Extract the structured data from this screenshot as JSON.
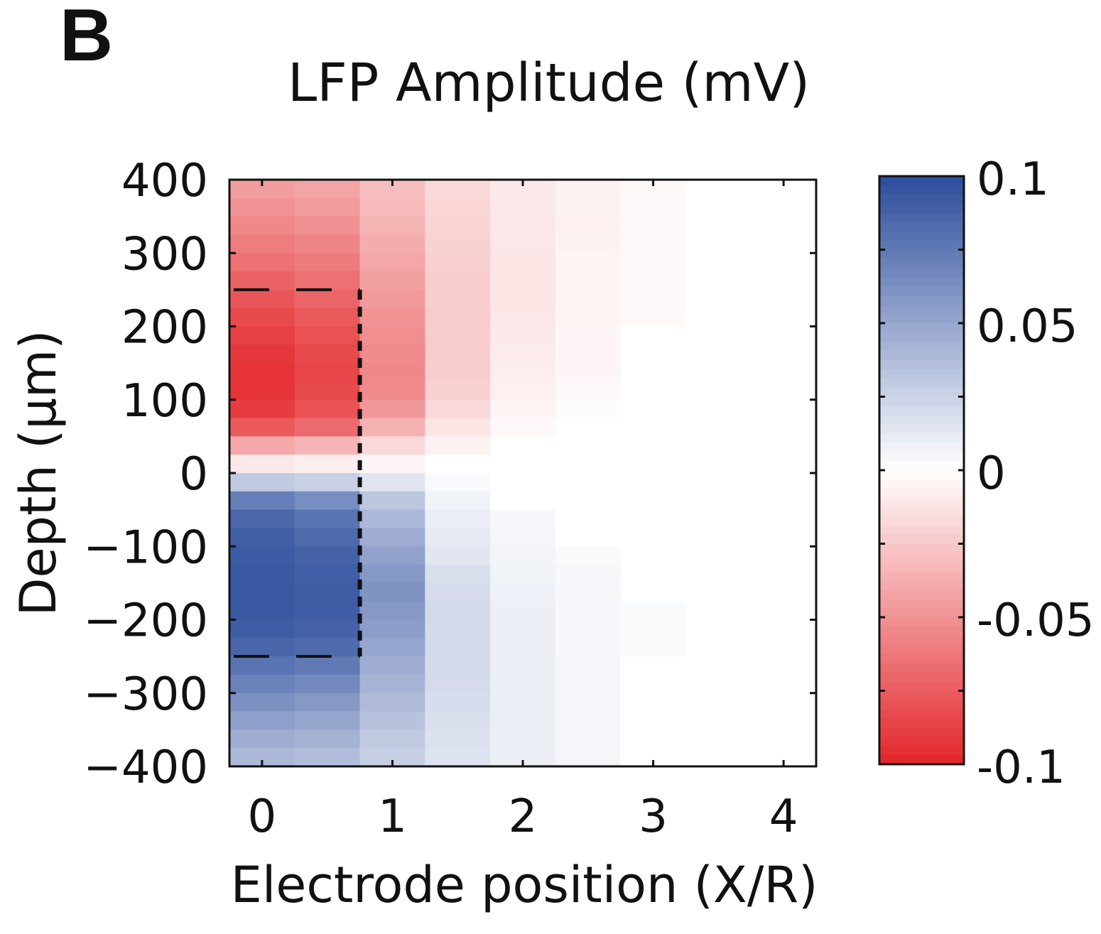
{
  "panel_label": "B",
  "chart_data": {
    "type": "heatmap",
    "title": "LFP Amplitude (mV)",
    "xlabel": "Electrode position (X/R)",
    "ylabel": "Depth (μm)",
    "xlim": [
      -0.25,
      4.25
    ],
    "ylim": [
      -400,
      400
    ],
    "xticks": [
      0,
      1,
      2,
      3,
      4
    ],
    "xtick_labels": [
      "0",
      "1",
      "2",
      "3",
      "4"
    ],
    "yticks": [
      400,
      300,
      200,
      100,
      0,
      -100,
      -200,
      -300,
      -400
    ],
    "ytick_labels": [
      "400",
      "300",
      "200",
      "100",
      "0",
      "−100",
      "−200",
      "−300",
      "−400"
    ],
    "x_columns": [
      0,
      0.5,
      1,
      1.5,
      2,
      2.5,
      3,
      3.5,
      4
    ],
    "y_row_centers": [
      387.5,
      362.5,
      337.5,
      312.5,
      287.5,
      262.5,
      237.5,
      212.5,
      187.5,
      162.5,
      137.5,
      112.5,
      87.5,
      62.5,
      37.5,
      12.5,
      -12.5,
      -37.5,
      -62.5,
      -87.5,
      -112.5,
      -137.5,
      -162.5,
      -187.5,
      -212.5,
      -237.5,
      -262.5,
      -287.5,
      -312.5,
      -337.5,
      -362.5,
      -387.5
    ],
    "values": [
      [
        -0.045,
        -0.042,
        -0.03,
        -0.018,
        -0.01,
        -0.006,
        -0.003,
        0,
        0
      ],
      [
        -0.05,
        -0.046,
        -0.032,
        -0.019,
        -0.01,
        -0.006,
        -0.003,
        0,
        0
      ],
      [
        -0.055,
        -0.051,
        -0.035,
        -0.02,
        -0.011,
        -0.007,
        -0.003,
        0,
        0
      ],
      [
        -0.06,
        -0.056,
        -0.038,
        -0.021,
        -0.011,
        -0.006,
        -0.003,
        0,
        0
      ],
      [
        -0.066,
        -0.061,
        -0.041,
        -0.022,
        -0.012,
        -0.005,
        -0.003,
        0,
        0
      ],
      [
        -0.072,
        -0.066,
        -0.044,
        -0.023,
        -0.012,
        -0.005,
        -0.003,
        0,
        0
      ],
      [
        -0.078,
        -0.071,
        -0.047,
        -0.023,
        -0.012,
        -0.005,
        -0.003,
        0,
        0
      ],
      [
        -0.083,
        -0.076,
        -0.05,
        -0.024,
        -0.011,
        -0.005,
        -0.003,
        0,
        0
      ],
      [
        -0.088,
        -0.08,
        -0.052,
        -0.024,
        -0.01,
        -0.004,
        0,
        0,
        0
      ],
      [
        -0.092,
        -0.083,
        -0.054,
        -0.024,
        -0.009,
        -0.004,
        0,
        0,
        0
      ],
      [
        -0.094,
        -0.085,
        -0.055,
        -0.023,
        -0.008,
        -0.004,
        0,
        0,
        0
      ],
      [
        -0.094,
        -0.084,
        -0.054,
        -0.021,
        -0.007,
        -0.003,
        0,
        0,
        0
      ],
      [
        -0.09,
        -0.08,
        -0.048,
        -0.018,
        -0.005,
        -0.002,
        0,
        0,
        0
      ],
      [
        -0.076,
        -0.068,
        -0.036,
        -0.012,
        -0.003,
        0,
        0,
        0,
        0
      ],
      [
        -0.04,
        -0.034,
        -0.018,
        -0.006,
        0,
        0,
        0,
        0,
        0
      ],
      [
        -0.01,
        -0.008,
        -0.004,
        0,
        0,
        0,
        0,
        0,
        0
      ],
      [
        0.03,
        0.026,
        0.015,
        0.003,
        0,
        0,
        0,
        0,
        0
      ],
      [
        0.072,
        0.064,
        0.032,
        0.007,
        0,
        0,
        0,
        0,
        0
      ],
      [
        0.085,
        0.078,
        0.04,
        0.01,
        0.004,
        0,
        0,
        0,
        0
      ],
      [
        0.09,
        0.084,
        0.046,
        0.012,
        0.005,
        0,
        0,
        0,
        0
      ],
      [
        0.092,
        0.088,
        0.052,
        0.014,
        0.006,
        0.003,
        0,
        0,
        0
      ],
      [
        0.093,
        0.09,
        0.058,
        0.018,
        0.007,
        0.004,
        0,
        0,
        0
      ],
      [
        0.093,
        0.091,
        0.06,
        0.02,
        0.008,
        0.004,
        0,
        0,
        0
      ],
      [
        0.093,
        0.091,
        0.058,
        0.021,
        0.009,
        0.004,
        0.003,
        0,
        0
      ],
      [
        0.091,
        0.088,
        0.055,
        0.021,
        0.009,
        0.004,
        0.003,
        0,
        0
      ],
      [
        0.086,
        0.083,
        0.05,
        0.021,
        0.009,
        0.004,
        0.003,
        0,
        0
      ],
      [
        0.078,
        0.075,
        0.046,
        0.021,
        0.009,
        0.005,
        0,
        0,
        0
      ],
      [
        0.07,
        0.066,
        0.042,
        0.02,
        0.009,
        0.005,
        0,
        0,
        0
      ],
      [
        0.062,
        0.058,
        0.038,
        0.019,
        0.009,
        0.005,
        0,
        0,
        0
      ],
      [
        0.054,
        0.05,
        0.034,
        0.018,
        0.009,
        0.005,
        0,
        0,
        0
      ],
      [
        0.046,
        0.043,
        0.03,
        0.017,
        0.009,
        0.005,
        0,
        0,
        0
      ],
      [
        0.04,
        0.037,
        0.027,
        0.016,
        0.009,
        0.005,
        0,
        0,
        0
      ]
    ],
    "colorbar": {
      "range": [
        -0.1,
        0.1
      ],
      "ticks": [
        0.1,
        0.05,
        0,
        -0.05,
        -0.1
      ],
      "tick_labels": [
        "0.1",
        "0.05",
        "0",
        "-0.05",
        "-0.1"
      ],
      "colors": {
        "negative": "#e3262a",
        "zero": "#ffffff",
        "positive": "#2c4d9c"
      }
    },
    "annotation": {
      "type": "dashed-rectangle",
      "x_range": [
        -0.25,
        0.75
      ],
      "y_range": [
        -250,
        250
      ],
      "color": "#111111"
    },
    "grid": false
  }
}
